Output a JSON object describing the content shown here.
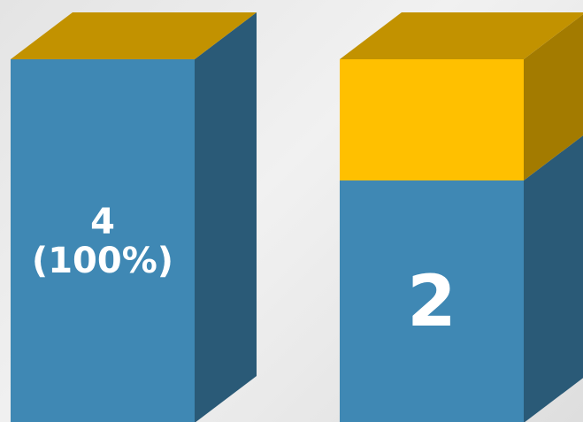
{
  "chart_data": {
    "type": "bar",
    "stacking": "percent",
    "categories": [
      null,
      null
    ],
    "series": [
      {
        "color": "#3f88b4",
        "values": [
          4,
          2
        ],
        "value_labels": [
          "4\n(100%)",
          "2"
        ]
      },
      {
        "color": "#ffc000",
        "values": [
          0,
          1
        ]
      }
    ],
    "ylim": [
      0,
      100
    ]
  }
}
